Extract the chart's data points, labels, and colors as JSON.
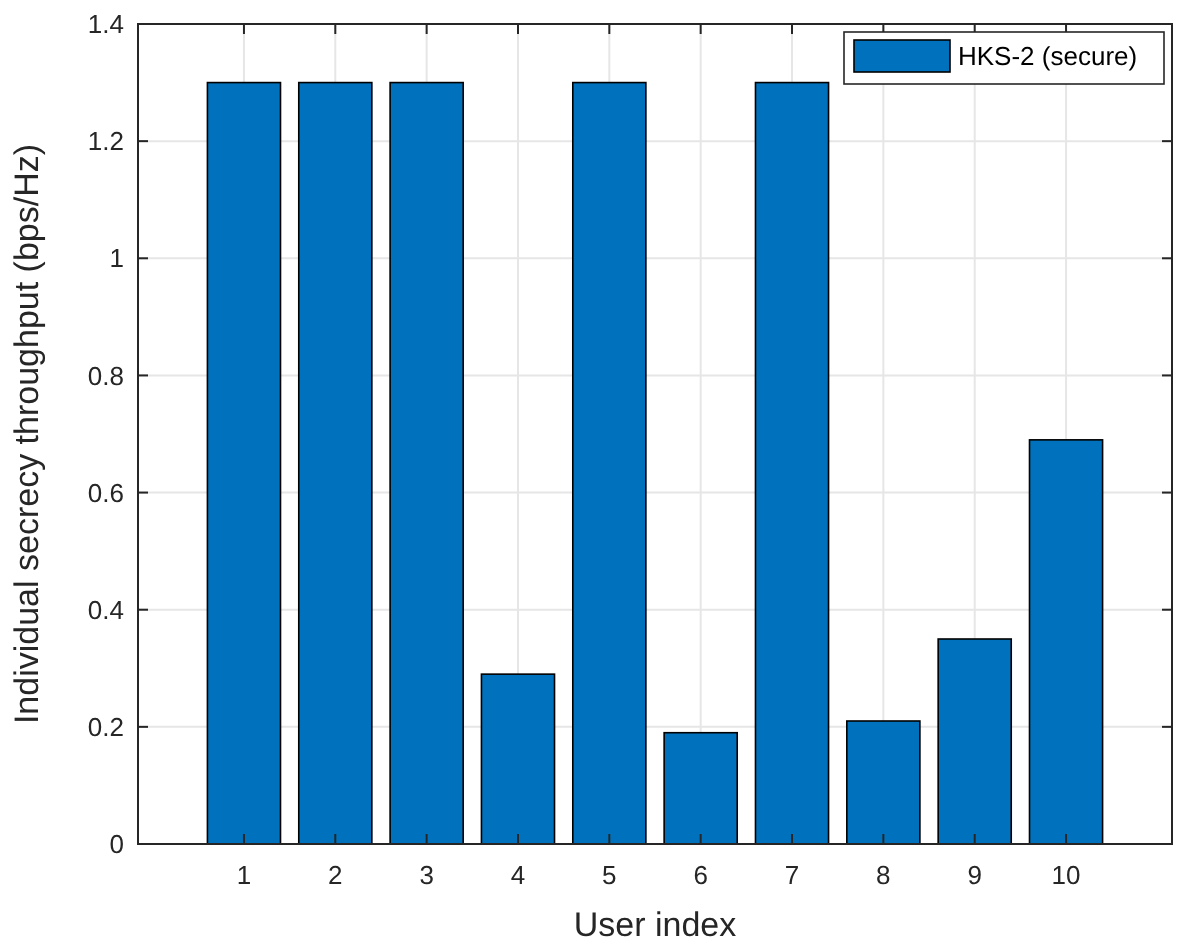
{
  "chart_data": {
    "type": "bar",
    "xlabel": "User index",
    "ylabel": "Individual secrecy throughput (bps/Hz)",
    "categories": [
      "1",
      "2",
      "3",
      "4",
      "5",
      "6",
      "7",
      "8",
      "9",
      "10"
    ],
    "series": [
      {
        "name": "HKS-2 (secure)",
        "color": "#0072bd",
        "values": [
          1.3,
          1.3,
          1.3,
          0.29,
          1.3,
          0.19,
          1.3,
          0.21,
          0.35,
          0.69
        ]
      }
    ],
    "ylim": [
      0,
      1.4
    ],
    "yticks": [
      0,
      0.2,
      0.4,
      0.6,
      0.8,
      1,
      1.2,
      1.4
    ],
    "grid": true,
    "legend": "top right"
  }
}
